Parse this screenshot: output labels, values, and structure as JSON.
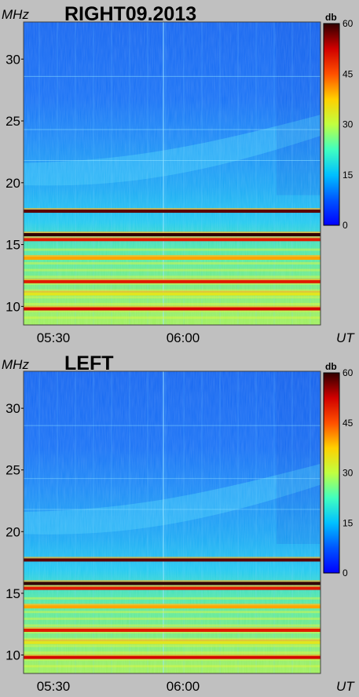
{
  "chart_data": [
    {
      "type": "heatmap",
      "title": "RIGHT09.2013",
      "ylabel": "MHz",
      "xlabel": "UT",
      "ylim": [
        8.5,
        33
      ],
      "x_ticks": [
        "05:30",
        "06:00"
      ],
      "y_ticks": [
        10,
        15,
        20,
        25,
        30
      ],
      "colorbar": {
        "unit": "db",
        "range": [
          0,
          60
        ],
        "ticks": [
          0,
          15,
          30,
          45,
          60
        ]
      },
      "bands": [
        {
          "freq": 17.7,
          "db": 58
        },
        {
          "freq": 15.8,
          "db": 60
        },
        {
          "freq": 15.4,
          "db": 50
        },
        {
          "freq": 13.9,
          "db": 40
        },
        {
          "freq": 12.0,
          "db": 50
        },
        {
          "freq": 11.0,
          "db": 34
        },
        {
          "freq": 9.8,
          "db": 52
        }
      ]
    },
    {
      "type": "heatmap",
      "title": "LEFT",
      "ylabel": "MHz",
      "xlabel": "UT",
      "ylim": [
        8.5,
        33
      ],
      "x_ticks": [
        "05:30",
        "06:00"
      ],
      "y_ticks": [
        10,
        15,
        20,
        25,
        30
      ],
      "colorbar": {
        "unit": "db",
        "range": [
          0,
          60
        ],
        "ticks": [
          0,
          15,
          30,
          45,
          60
        ]
      },
      "bands": [
        {
          "freq": 17.7,
          "db": 58
        },
        {
          "freq": 15.8,
          "db": 60
        },
        {
          "freq": 15.4,
          "db": 50
        },
        {
          "freq": 13.9,
          "db": 40
        },
        {
          "freq": 12.0,
          "db": 50
        },
        {
          "freq": 11.0,
          "db": 34
        },
        {
          "freq": 9.8,
          "db": 52
        }
      ]
    }
  ]
}
